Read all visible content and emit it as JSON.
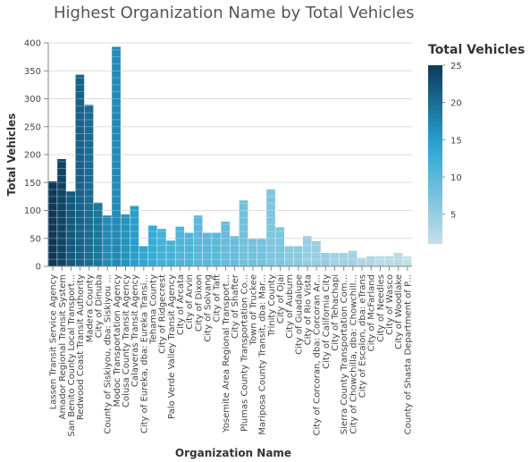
{
  "chart_data": {
    "type": "bar",
    "title": "Highest Organization Name by Total Vehicles",
    "xlabel": "Organization Name",
    "ylabel": "Total Vehicles",
    "ylim": [
      0,
      400
    ],
    "yticks": [
      0,
      50,
      100,
      150,
      200,
      250,
      300,
      350,
      400
    ],
    "grid": true,
    "stacked_segments": true,
    "categories": [
      "Lassen Transit Service Agency",
      "Amador Regional Transit System",
      "San Benito County Local Transport...",
      "Redwood Coast Transit Authority",
      "Madera County",
      "City of Dinuba",
      "County of Siskiyou, dba: Siskiyou ...",
      "Modoc Transportation Agency",
      "Colusa County Transit Agency",
      "Calaveras Transit Agency",
      "City of Eureka, dba: Eureka Transi...",
      "Tehama County",
      "City of Ridgecrest",
      "Palo Verde Valley Transit Agency",
      "City of Arcata",
      "City of Arvin",
      "City of Dixon",
      "City of Solvang",
      "City of Taft",
      "Yosemite Area Regional Transport...",
      "City of Shafter",
      "Plumas County Transportation Co...",
      "Town of Truckee",
      "Mariposa County Transit, dba: Mar...",
      "Trinity County",
      "City of Ojai",
      "City of Auburn",
      "City of Guadalupe",
      "City of Rio Vista",
      "City of Corcoran, dba: Corcoran Ar...",
      "City of California City",
      "City of Tehachapi",
      "Sierra County Transportation Com...",
      "City of Chowchilla, dba: Chowchill...",
      "City of Escalon, dba: eTrans",
      "City of McFarland",
      "City of Needles",
      "City of Wasco",
      "City of Woodlake",
      "County of Shasta Department of P..."
    ],
    "values": [
      152,
      192,
      134,
      343,
      289,
      114,
      91,
      393,
      93,
      108,
      36,
      73,
      67,
      46,
      71,
      60,
      91,
      60,
      60,
      80,
      54,
      118,
      49,
      49,
      138,
      70,
      36,
      36,
      54,
      45,
      24,
      24,
      24,
      28,
      15,
      18,
      18,
      18,
      24,
      18
    ],
    "segment_counts": [
      25,
      24,
      22,
      21,
      20,
      19,
      17,
      17,
      16,
      15,
      14,
      13,
      12,
      12,
      11,
      11,
      10,
      10,
      10,
      9,
      9,
      8,
      8,
      8,
      7,
      7,
      6,
      6,
      5,
      5,
      5,
      4,
      4,
      4,
      3,
      3,
      2,
      2,
      2,
      1
    ],
    "color_scale": {
      "title": "Total Vehicles",
      "domain": [
        1,
        25
      ],
      "ticks": [
        5,
        10,
        15,
        20,
        25
      ],
      "color_low": "#c5dfe8",
      "color_mid": "#2aa6d3",
      "color_high": "#0d3a5a"
    },
    "legend_position": "right",
    "gridline_color": "#dddddd",
    "axis_color": "#888888"
  }
}
